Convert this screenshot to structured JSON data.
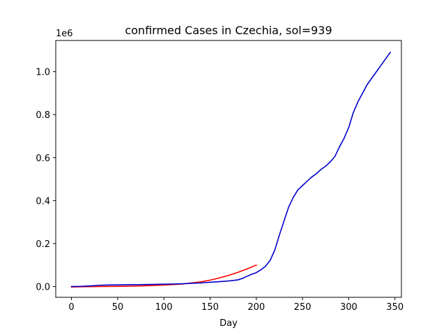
{
  "chart_data": {
    "type": "line",
    "title": "confirmed Cases in Czechia, sol=939",
    "xlabel": "Day",
    "ylabel": "",
    "y_offset_label": "1e6",
    "xlim": [
      -17,
      357
    ],
    "ylim": [
      -50000,
      1145000
    ],
    "x_ticks": [
      0,
      50,
      100,
      150,
      200,
      250,
      300,
      350
    ],
    "x_tick_labels": [
      "0",
      "50",
      "100",
      "150",
      "200",
      "250",
      "300",
      "350"
    ],
    "y_ticks": [
      0,
      200000,
      400000,
      600000,
      800000,
      1000000
    ],
    "y_tick_labels": [
      "0.0",
      "0.2",
      "0.4",
      "0.6",
      "0.8",
      "1.0"
    ],
    "grid": false,
    "series": [
      {
        "color": "#ff0000",
        "x": [
          0,
          25,
          50,
          75,
          100,
          120,
          140,
          150,
          160,
          170,
          180,
          190,
          200
        ],
        "y": [
          -2000,
          0,
          1000,
          3000,
          7000,
          12000,
          22000,
          30000,
          40000,
          52000,
          66000,
          82000,
          100000
        ]
      },
      {
        "color": "#0000cc",
        "x": [
          0,
          10,
          20,
          30,
          40,
          50,
          60,
          80,
          100,
          120,
          140,
          150,
          160,
          170,
          180,
          185,
          190,
          195,
          200,
          205,
          210,
          215,
          220,
          225,
          230,
          235,
          240,
          245,
          250,
          255,
          260,
          265,
          270,
          275,
          280,
          285,
          290,
          295,
          300,
          305,
          310,
          315,
          320,
          325,
          330,
          335,
          340,
          345
        ],
        "y": [
          0,
          1000,
          3000,
          6000,
          7500,
          8000,
          8500,
          9500,
          11000,
          13000,
          17000,
          20000,
          23000,
          26000,
          31000,
          38000,
          48000,
          57000,
          65000,
          78000,
          95000,
          122000,
          170000,
          240000,
          305000,
          370000,
          415000,
          450000,
          470000,
          490000,
          510000,
          525000,
          545000,
          560000,
          580000,
          605000,
          650000,
          690000,
          740000,
          810000,
          860000,
          900000,
          940000,
          970000,
          1000000,
          1030000,
          1060000,
          1090000
        ]
      }
    ]
  }
}
